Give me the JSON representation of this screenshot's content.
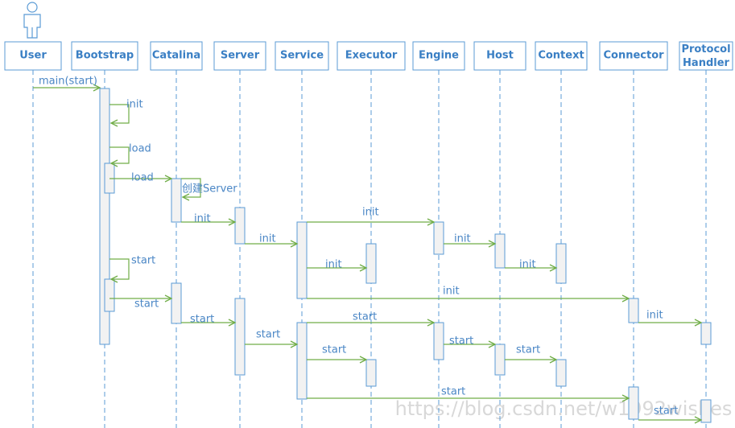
{
  "participants": [
    "User",
    "Bootstrap",
    "Catalina",
    "Server",
    "Service",
    "Executor",
    "Engine",
    "Host",
    "Context",
    "Connector",
    "Protocol Handler"
  ],
  "messages": [
    "main(start)",
    "init",
    "load",
    "load",
    "创建Server",
    "init",
    "init",
    "init",
    "init",
    "init",
    "init",
    "start",
    "init",
    "start",
    "init",
    "start",
    "start",
    "start",
    "start",
    "start",
    "start",
    "start",
    "start"
  ],
  "watermark": "https://blog.csdn.net/w1992wishes"
}
